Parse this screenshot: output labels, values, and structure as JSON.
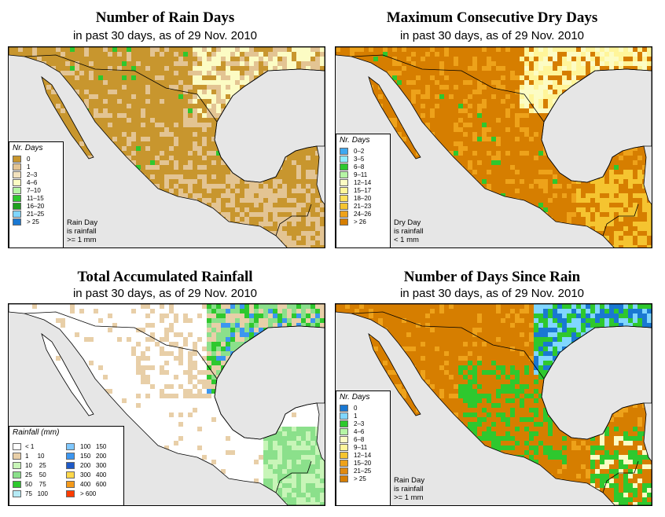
{
  "panels": [
    {
      "title": "Number of Rain Days",
      "subtitle": "in past 30 days, as of  29 Nov. 2010",
      "legend": {
        "title": "Nr. Days",
        "items": [
          {
            "label": "0",
            "color": "#c8962e"
          },
          {
            "label": "1",
            "color": "#e3c493"
          },
          {
            "label": "2–3",
            "color": "#f3e2be"
          },
          {
            "label": "4–6",
            "color": "#fcfcc4"
          },
          {
            "label": "7–10",
            "color": "#b5f5a5"
          },
          {
            "label": "11–15",
            "color": "#2ec82e"
          },
          {
            "label": "16–20",
            "color": "#1fa01f"
          },
          {
            "label": "21–25",
            "color": "#80d6ff"
          },
          {
            "label": "> 25",
            "color": "#1a78d2"
          }
        ],
        "note": [
          "Rain Day",
          "is rainfall",
          ">= 1 mm"
        ]
      }
    },
    {
      "title": "Maximum Consecutive Dry Days",
      "subtitle": "in past 30 days, as of  29 Nov. 2010",
      "legend": {
        "title": "Nr. Days",
        "items": [
          {
            "label": "0–2",
            "color": "#3fa8f0"
          },
          {
            "label": "3–5",
            "color": "#90ecff"
          },
          {
            "label": "6–8",
            "color": "#2ec82e"
          },
          {
            "label": "9–11",
            "color": "#b5f5a5"
          },
          {
            "label": "12–14",
            "color": "#fcfcc4"
          },
          {
            "label": "15–17",
            "color": "#fff59a"
          },
          {
            "label": "18–20",
            "color": "#ffe05a"
          },
          {
            "label": "21–23",
            "color": "#f5c430"
          },
          {
            "label": "24–26",
            "color": "#eea21a"
          },
          {
            "label": "> 26",
            "color": "#d67e00"
          }
        ],
        "note": [
          "Dry Day",
          "is rainfall",
          "< 1 mm"
        ]
      }
    },
    {
      "title": "Total Accumulated Rainfall",
      "subtitle": "in past 30 days, as of  29 Nov. 2010",
      "legend": {
        "title": "Rainfall (mm)",
        "col1": [
          {
            "label": "< 1",
            "color": "#ffffff"
          },
          {
            "label": "1     10",
            "color": "#e8cfa8"
          },
          {
            "label": "10    25",
            "color": "#c8f5b8"
          },
          {
            "label": "25    50",
            "color": "#8be08b"
          },
          {
            "label": "50    75",
            "color": "#2ec82e"
          },
          {
            "label": "75   100",
            "color": "#b5eaf5"
          }
        ],
        "col2": [
          {
            "label": "100   150",
            "color": "#80c8ff"
          },
          {
            "label": "150   200",
            "color": "#3c96f0"
          },
          {
            "label": "200   300",
            "color": "#1e5ac8"
          },
          {
            "label": "300   400",
            "color": "#ffd84a"
          },
          {
            "label": "400   600",
            "color": "#f59a1a"
          },
          {
            "label": "> 600",
            "color": "#ff3c00"
          }
        ]
      }
    },
    {
      "title": "Number of Days Since Rain",
      "subtitle": "in past 30 days, as of  29 Nov. 2010",
      "legend": {
        "title": "Nr. Days",
        "items": [
          {
            "label": "0",
            "color": "#1a78d2"
          },
          {
            "label": "1",
            "color": "#80d6ff"
          },
          {
            "label": "2–3",
            "color": "#2ec82e"
          },
          {
            "label": "4–6",
            "color": "#b5f5a5"
          },
          {
            "label": "6–8",
            "color": "#fcfcc4"
          },
          {
            "label": "9–11",
            "color": "#fff59a"
          },
          {
            "label": "12–14",
            "color": "#f5c430"
          },
          {
            "label": "15–20",
            "color": "#eea21a"
          },
          {
            "label": "21–25",
            "color": "#e08a10"
          },
          {
            "label": "> 25",
            "color": "#d67e00"
          }
        ],
        "note": [
          "Rain Day",
          "is rainfall",
          ">= 1 mm"
        ]
      }
    }
  ],
  "colors": {
    "ocean": "#e6e6e6",
    "p1_land": "#c8962e",
    "p1_alt": "#e3c493",
    "p1_light": "#fcfcc4",
    "p2_land": "#d67e00",
    "p2_alt": "#eea21a",
    "p2_light": "#fcfcc4",
    "p3_land": "#ffffff",
    "p3_alt": "#e8cfa8",
    "p3_green": "#8be08b",
    "p3_blue": "#3c96f0",
    "p4_land": "#d67e00",
    "p4_green": "#2ec82e",
    "p4_blue": "#80d6ff"
  }
}
